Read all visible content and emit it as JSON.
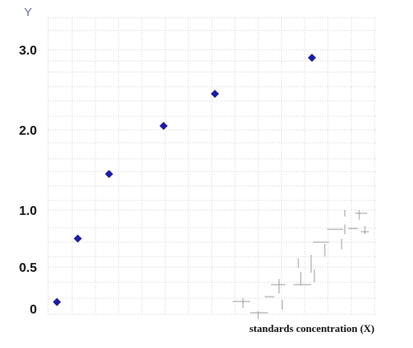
{
  "chart_data": {
    "type": "scatter",
    "ylabel": "Y",
    "xlabel": "standards concentration (X)",
    "y_tick_labels": [
      {
        "label": "3.0",
        "value": 3.0
      },
      {
        "label": "2.0",
        "value": 2.0
      },
      {
        "label": "1.0",
        "value": 1.0
      },
      {
        "label": "0.5",
        "value": 0.5
      },
      {
        "label": "0",
        "value": 0
      }
    ],
    "grid": true,
    "points": [
      {
        "x": 1,
        "y": 0.08
      },
      {
        "x": 3,
        "y": 0.75
      },
      {
        "x": 5,
        "y": 1.45
      },
      {
        "x": 10,
        "y": 2.05
      },
      {
        "x": 15,
        "y": 2.45
      },
      {
        "x": 24,
        "y": 2.9
      }
    ],
    "marker": "diamond",
    "marker_color": "#1c1cae"
  }
}
